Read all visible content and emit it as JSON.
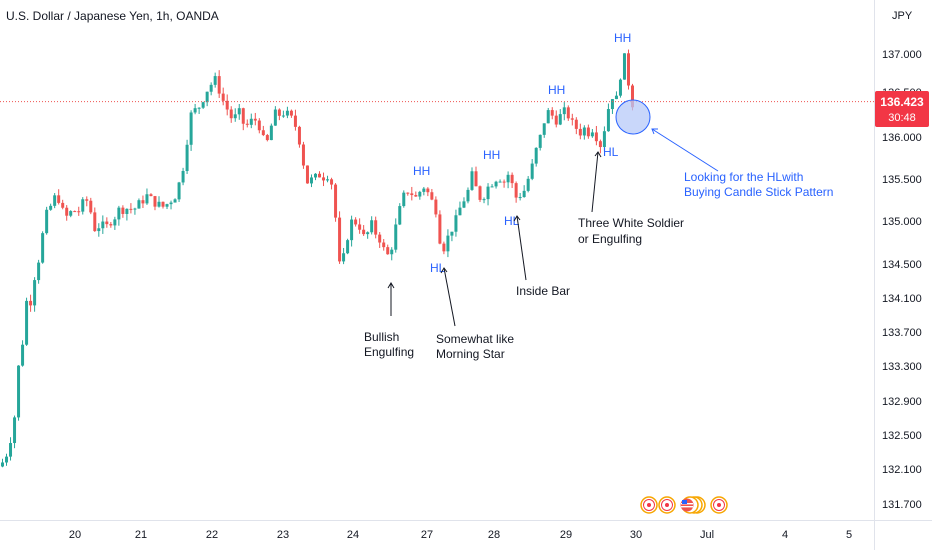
{
  "header": {
    "title": "U.S. Dollar / Japanese Yen, 1h, OANDA"
  },
  "currency": "JPY",
  "price_badge": {
    "price": "136.423",
    "countdown": "30:48"
  },
  "colors": {
    "up": "#26a69a",
    "down": "#ef5350",
    "accent": "#2962ff",
    "badge": "#f23645",
    "text": "#131722"
  },
  "chart_data": {
    "type": "candlestick",
    "title": "U.S. Dollar / Japanese Yen, 1h, OANDA",
    "ylim": [
      131.4,
      137.45
    ],
    "yticks": [
      "137.000",
      "136.500",
      "136.000",
      "135.500",
      "135.000",
      "134.500",
      "134.100",
      "133.700",
      "133.300",
      "132.900",
      "132.500",
      "132.100",
      "131.700"
    ],
    "xticks": [
      "20",
      "21",
      "22",
      "23",
      "24",
      "27",
      "28",
      "29",
      "30",
      "Jul",
      "4",
      "5"
    ],
    "last_price": 136.423,
    "path": [
      [
        0,
        132.05
      ],
      [
        6,
        132.2
      ],
      [
        12,
        132.6
      ],
      [
        16,
        133.2
      ],
      [
        20,
        133.5
      ],
      [
        24,
        134.0
      ],
      [
        28,
        134.0
      ],
      [
        32,
        134.3
      ],
      [
        36,
        134.5
      ],
      [
        40,
        134.8
      ],
      [
        44,
        135.05
      ],
      [
        50,
        135.2
      ],
      [
        54,
        135.3
      ],
      [
        58,
        135.2
      ],
      [
        62,
        135.0
      ],
      [
        66,
        135.05
      ],
      [
        70,
        135.1
      ],
      [
        74,
        135.1
      ],
      [
        78,
        135.1
      ],
      [
        82,
        135.25
      ],
      [
        86,
        135.2
      ],
      [
        90,
        135.0
      ],
      [
        94,
        134.8
      ],
      [
        98,
        135.0
      ],
      [
        102,
        134.85
      ],
      [
        106,
        134.95
      ],
      [
        110,
        135.0
      ],
      [
        114,
        135.05
      ],
      [
        118,
        135.15
      ],
      [
        122,
        135.1
      ],
      [
        126,
        135.15
      ],
      [
        130,
        135.1
      ],
      [
        134,
        135.15
      ],
      [
        138,
        135.2
      ],
      [
        142,
        135.25
      ],
      [
        146,
        135.3
      ],
      [
        150,
        135.2
      ],
      [
        154,
        135.2
      ],
      [
        158,
        135.15
      ],
      [
        162,
        135.15
      ],
      [
        166,
        135.2
      ],
      [
        170,
        135.25
      ],
      [
        174,
        135.3
      ],
      [
        178,
        135.5
      ],
      [
        182,
        135.7
      ],
      [
        186,
        136.1
      ],
      [
        190,
        136.35
      ],
      [
        194,
        136.3
      ],
      [
        198,
        136.4
      ],
      [
        202,
        136.5
      ],
      [
        206,
        136.6
      ],
      [
        210,
        136.65
      ],
      [
        214,
        136.7
      ],
      [
        218,
        136.5
      ],
      [
        222,
        136.4
      ],
      [
        226,
        136.3
      ],
      [
        230,
        136.2
      ],
      [
        234,
        136.25
      ],
      [
        238,
        136.3
      ],
      [
        242,
        136.1
      ],
      [
        246,
        136.15
      ],
      [
        250,
        136.2
      ],
      [
        254,
        136.2
      ],
      [
        258,
        136.1
      ],
      [
        262,
        135.9
      ],
      [
        266,
        135.95
      ],
      [
        270,
        136.2
      ],
      [
        274,
        136.3
      ],
      [
        278,
        136.25
      ],
      [
        282,
        136.3
      ],
      [
        286,
        136.25
      ],
      [
        290,
        136.2
      ],
      [
        294,
        136.1
      ],
      [
        298,
        135.9
      ],
      [
        302,
        135.6
      ],
      [
        306,
        135.4
      ],
      [
        310,
        135.5
      ],
      [
        314,
        135.5
      ],
      [
        318,
        135.55
      ],
      [
        322,
        135.5
      ],
      [
        326,
        135.55
      ],
      [
        330,
        135.4
      ],
      [
        334,
        134.9
      ],
      [
        338,
        134.3
      ],
      [
        342,
        134.6
      ],
      [
        346,
        134.85
      ],
      [
        350,
        135.0
      ],
      [
        354,
        134.95
      ],
      [
        358,
        134.9
      ],
      [
        362,
        134.75
      ],
      [
        366,
        134.85
      ],
      [
        370,
        134.95
      ],
      [
        374,
        134.8
      ],
      [
        378,
        134.75
      ],
      [
        382,
        134.6
      ],
      [
        386,
        134.55
      ],
      [
        390,
        134.7
      ],
      [
        394,
        134.95
      ],
      [
        398,
        135.15
      ],
      [
        402,
        135.3
      ],
      [
        406,
        135.35
      ],
      [
        410,
        135.3
      ],
      [
        414,
        135.25
      ],
      [
        418,
        135.35
      ],
      [
        422,
        135.4
      ],
      [
        426,
        135.3
      ],
      [
        430,
        135.2
      ],
      [
        434,
        135.1
      ],
      [
        438,
        134.7
      ],
      [
        442,
        134.65
      ],
      [
        446,
        134.8
      ],
      [
        450,
        134.9
      ],
      [
        454,
        135.0
      ],
      [
        458,
        135.15
      ],
      [
        462,
        135.25
      ],
      [
        466,
        135.35
      ],
      [
        470,
        135.55
      ],
      [
        474,
        135.35
      ],
      [
        478,
        135.25
      ],
      [
        482,
        135.3
      ],
      [
        486,
        135.4
      ],
      [
        490,
        135.45
      ],
      [
        494,
        135.5
      ],
      [
        498,
        135.5
      ],
      [
        502,
        135.45
      ],
      [
        506,
        135.55
      ],
      [
        510,
        135.4
      ],
      [
        514,
        135.25
      ],
      [
        518,
        135.3
      ],
      [
        522,
        135.35
      ],
      [
        526,
        135.5
      ],
      [
        530,
        135.65
      ],
      [
        534,
        135.85
      ],
      [
        538,
        136.0
      ],
      [
        542,
        136.2
      ],
      [
        546,
        136.3
      ],
      [
        550,
        136.25
      ],
      [
        554,
        136.2
      ],
      [
        558,
        136.25
      ],
      [
        562,
        136.3
      ],
      [
        566,
        136.25
      ],
      [
        570,
        136.15
      ],
      [
        574,
        136.1
      ],
      [
        578,
        136.05
      ],
      [
        582,
        136.1
      ],
      [
        586,
        136.05
      ],
      [
        590,
        136.1
      ],
      [
        594,
        136.0
      ],
      [
        598,
        135.9
      ],
      [
        602,
        136.1
      ],
      [
        606,
        136.35
      ],
      [
        610,
        136.5
      ],
      [
        614,
        136.45
      ],
      [
        618,
        136.75
      ],
      [
        622,
        136.95
      ],
      [
        626,
        136.65
      ],
      [
        630,
        136.4
      ]
    ],
    "annotations": {
      "hh": [
        "HH",
        "HH",
        "HH",
        "HH"
      ],
      "hl": [
        "HL",
        "HL",
        "HL"
      ],
      "patterns": [
        {
          "lines": [
            "Bullish",
            "Engulfing"
          ]
        },
        {
          "lines": [
            "Somewhat like",
            "Morning Star"
          ]
        },
        {
          "lines": [
            "Inside Bar"
          ]
        },
        {
          "lines": [
            "Three White Soldier",
            "or Engulfing"
          ]
        }
      ],
      "note": {
        "lines": [
          "Looking for the HLwith",
          "Buying Candle Stick Pattern"
        ]
      }
    }
  }
}
